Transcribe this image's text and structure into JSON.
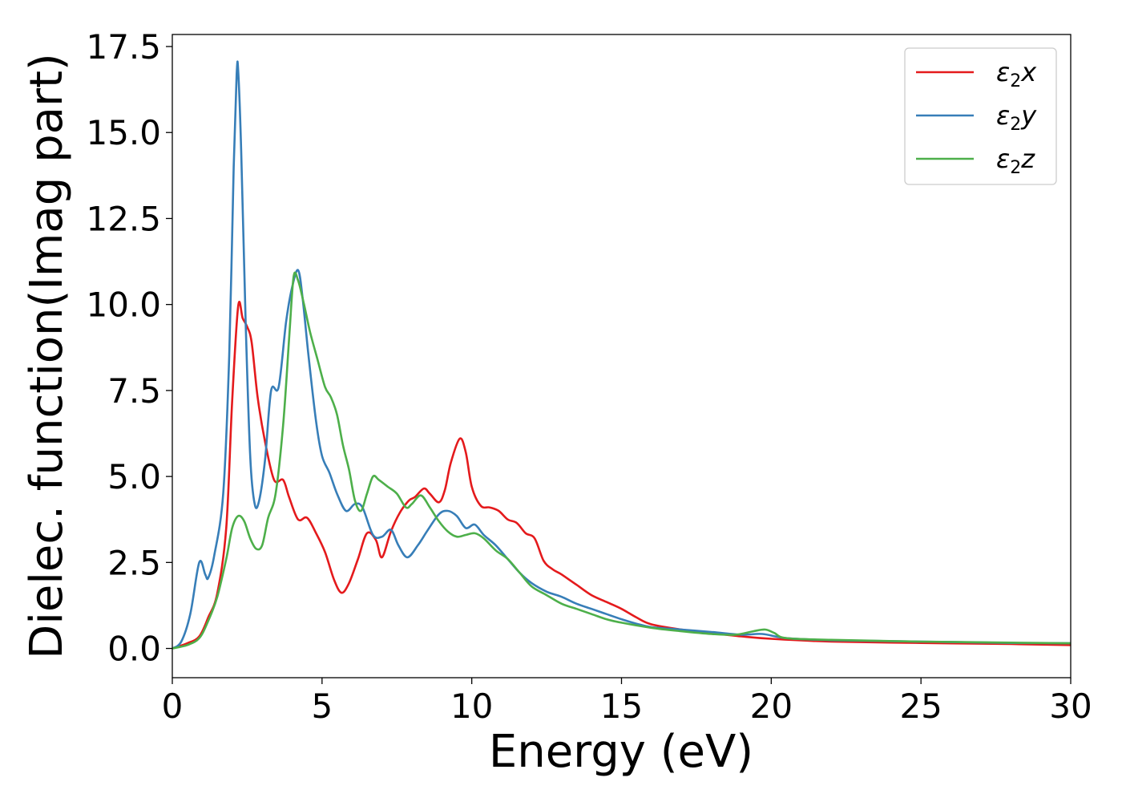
{
  "chart_data": {
    "type": "line",
    "xlabel": "Energy (eV)",
    "ylabel": "Dielec. function(Imag part)",
    "xlim": [
      0,
      30
    ],
    "ylim": [
      -0.85,
      17.85
    ],
    "xticks": [
      0,
      5,
      10,
      15,
      20,
      25,
      30
    ],
    "xtick_labels": [
      "0",
      "5",
      "10",
      "15",
      "20",
      "25",
      "30"
    ],
    "yticks": [
      0,
      2.5,
      5,
      7.5,
      10,
      12.5,
      15,
      17.5
    ],
    "ytick_labels": [
      "0.0",
      "2.5",
      "5.0",
      "7.5",
      "10.0",
      "12.5",
      "15.0",
      "17.5"
    ],
    "grid": false,
    "legend_position": "top-right",
    "series": [
      {
        "name": "ε₂x",
        "legend_base": "ε",
        "legend_sub": "2",
        "legend_tail": "x",
        "color": "#e41a1c",
        "x": [
          0,
          0.5,
          0.9,
          1.2,
          1.5,
          1.8,
          2.0,
          2.2,
          2.35,
          2.5,
          2.65,
          2.85,
          3.1,
          3.4,
          3.7,
          3.9,
          4.2,
          4.5,
          4.8,
          5.1,
          5.4,
          5.65,
          5.9,
          6.2,
          6.5,
          6.8,
          7.0,
          7.3,
          7.6,
          7.9,
          8.1,
          8.4,
          8.6,
          8.9,
          9.1,
          9.3,
          9.6,
          9.8,
          10.0,
          10.3,
          10.6,
          10.9,
          11.2,
          11.5,
          11.8,
          12.1,
          12.4,
          12.7,
          13.0,
          13.5,
          14.0,
          14.5,
          15.0,
          15.5,
          16.0,
          17.0,
          18.0,
          19.0,
          20.0,
          22.0,
          25.0,
          28.0,
          30.0
        ],
        "y": [
          0.0,
          0.15,
          0.35,
          0.9,
          1.6,
          3.5,
          7.2,
          9.95,
          9.6,
          9.35,
          8.9,
          7.3,
          6.0,
          4.9,
          4.9,
          4.4,
          3.75,
          3.8,
          3.35,
          2.8,
          2.0,
          1.62,
          1.9,
          2.6,
          3.35,
          3.15,
          2.65,
          3.4,
          3.95,
          4.3,
          4.4,
          4.65,
          4.5,
          4.25,
          4.6,
          5.4,
          6.1,
          5.7,
          4.7,
          4.15,
          4.1,
          4.0,
          3.75,
          3.65,
          3.35,
          3.2,
          2.55,
          2.3,
          2.15,
          1.85,
          1.55,
          1.35,
          1.15,
          0.9,
          0.7,
          0.55,
          0.45,
          0.35,
          0.28,
          0.2,
          0.16,
          0.13,
          0.1
        ]
      },
      {
        "name": "ε₂y",
        "legend_base": "ε",
        "legend_sub": "2",
        "legend_tail": "y",
        "color": "#377eb8",
        "x": [
          0,
          0.3,
          0.6,
          0.9,
          1.1,
          1.2,
          1.4,
          1.7,
          1.9,
          2.05,
          2.15,
          2.2,
          2.3,
          2.45,
          2.6,
          2.75,
          2.9,
          3.1,
          3.3,
          3.55,
          3.8,
          4.0,
          4.2,
          4.35,
          4.55,
          4.8,
          5.0,
          5.25,
          5.5,
          5.8,
          6.1,
          6.35,
          6.7,
          7.0,
          7.3,
          7.55,
          7.85,
          8.2,
          8.5,
          8.9,
          9.2,
          9.5,
          9.8,
          10.1,
          10.4,
          10.8,
          11.2,
          11.6,
          12.0,
          12.5,
          13.0,
          13.5,
          14.0,
          14.5,
          15.0,
          15.5,
          16.0,
          17.0,
          18.0,
          19.0,
          19.7,
          20.5,
          22.0,
          25.0,
          28.0,
          30.0
        ],
        "y": [
          0.0,
          0.2,
          1.0,
          2.5,
          2.15,
          2.05,
          2.7,
          4.5,
          8.5,
          14.0,
          16.7,
          16.8,
          14.5,
          9.5,
          5.6,
          4.2,
          4.3,
          5.5,
          7.5,
          7.6,
          9.5,
          10.5,
          11.0,
          10.2,
          8.5,
          6.6,
          5.6,
          5.1,
          4.5,
          4.0,
          4.2,
          4.1,
          3.3,
          3.25,
          3.45,
          3.0,
          2.65,
          3.0,
          3.4,
          3.9,
          4.0,
          3.85,
          3.5,
          3.6,
          3.3,
          3.0,
          2.6,
          2.2,
          1.9,
          1.65,
          1.5,
          1.3,
          1.15,
          1.0,
          0.85,
          0.72,
          0.62,
          0.55,
          0.48,
          0.4,
          0.42,
          0.3,
          0.24,
          0.2,
          0.16,
          0.15
        ]
      },
      {
        "name": "ε₂z",
        "legend_base": "ε",
        "legend_sub": "2",
        "legend_tail": "z",
        "color": "#4daf4a",
        "x": [
          0,
          0.5,
          0.9,
          1.2,
          1.5,
          1.8,
          2.0,
          2.2,
          2.4,
          2.6,
          2.8,
          3.0,
          3.2,
          3.45,
          3.7,
          3.9,
          4.05,
          4.2,
          4.4,
          4.6,
          4.85,
          5.1,
          5.3,
          5.5,
          5.7,
          5.9,
          6.1,
          6.3,
          6.5,
          6.7,
          6.9,
          7.2,
          7.5,
          7.8,
          8.0,
          8.3,
          8.6,
          8.9,
          9.2,
          9.5,
          9.8,
          10.1,
          10.4,
          10.8,
          11.2,
          11.6,
          12.0,
          12.5,
          13.0,
          13.5,
          14.0,
          14.5,
          15.0,
          16.0,
          17.0,
          18.0,
          18.8,
          19.4,
          19.8,
          20.1,
          20.5,
          22.0,
          25.0,
          28.0,
          30.0
        ],
        "y": [
          0.0,
          0.1,
          0.3,
          0.8,
          1.5,
          2.6,
          3.5,
          3.85,
          3.7,
          3.2,
          2.9,
          3.0,
          3.8,
          4.5,
          6.5,
          9.0,
          10.8,
          10.7,
          10.0,
          9.2,
          8.4,
          7.6,
          7.3,
          6.8,
          5.9,
          5.2,
          4.3,
          4.0,
          4.5,
          5.0,
          4.9,
          4.7,
          4.5,
          4.1,
          4.2,
          4.45,
          4.1,
          3.7,
          3.4,
          3.25,
          3.3,
          3.35,
          3.2,
          2.85,
          2.6,
          2.2,
          1.8,
          1.55,
          1.3,
          1.15,
          1.0,
          0.85,
          0.75,
          0.6,
          0.5,
          0.42,
          0.4,
          0.5,
          0.55,
          0.45,
          0.3,
          0.25,
          0.2,
          0.17,
          0.15
        ]
      }
    ]
  }
}
